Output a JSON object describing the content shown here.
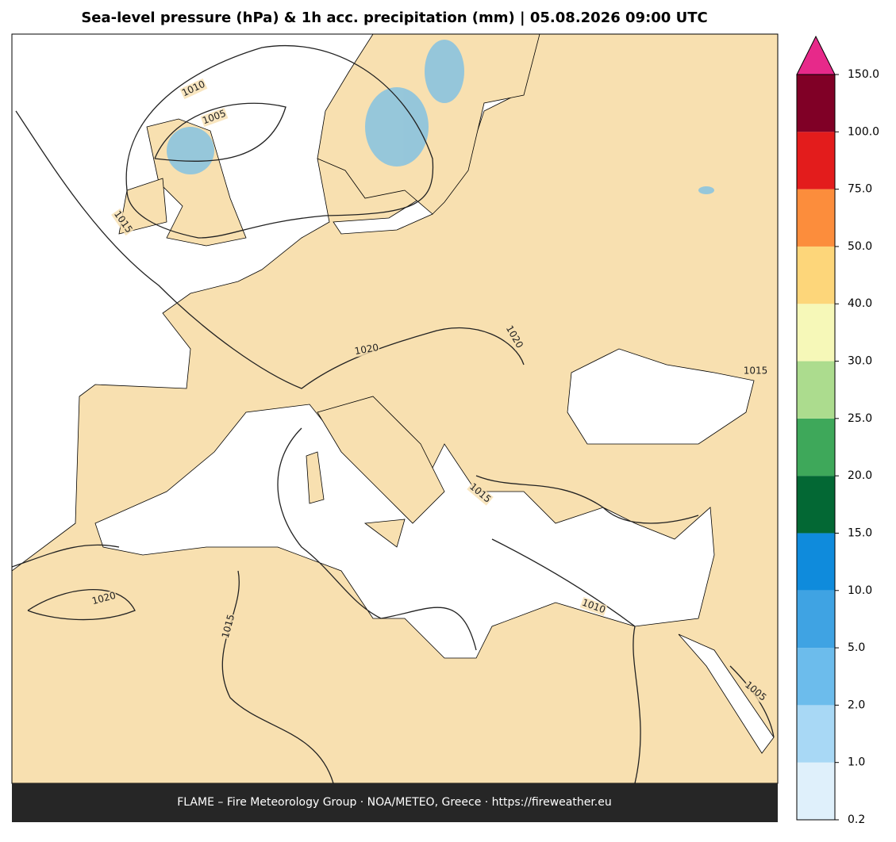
{
  "title": "Sea-level pressure (hPa) & 1h acc. precipitation (mm)  |  05.08.2026 09:00 UTC",
  "footer": "FLAME – Fire Meteorology Group · NOA/METEO, Greece · https://fireweather.eu",
  "colorbar": {
    "ticks": [
      0.2,
      {
        "value": 1,
        "label": "1.0"
      },
      {
        "value": 2,
        "label": "2.0"
      },
      {
        "value": 5,
        "label": "5.0"
      },
      {
        "value": 10,
        "label": "10.0"
      },
      {
        "value": 15,
        "label": "15.0"
      },
      {
        "value": 20,
        "label": "20.0"
      },
      {
        "value": 25,
        "label": "25.0"
      },
      {
        "value": 30,
        "label": "30.0"
      },
      {
        "value": 40,
        "label": "40.0"
      },
      {
        "value": 50,
        "label": "50.0"
      },
      {
        "value": 75,
        "label": "75.0"
      },
      {
        "value": 100,
        "label": "100.0"
      },
      {
        "value": 150,
        "label": "150.0"
      }
    ],
    "colors": [
      "#dff0fb",
      "#a8d8f5",
      "#6cbcec",
      "#3fa3e3",
      "#0f8bdc",
      "#036834",
      "#3ea85a",
      "#acdc8e",
      "#f6f8b8",
      "#fdd67a",
      "#fc8d3c",
      "#e31c1c",
      "#800026"
    ],
    "extend_color": "#e7298a"
  },
  "contour_labels": [
    "1010",
    "1005",
    "1015",
    "1020",
    "1020",
    "1015",
    "1015",
    "1020",
    "1015",
    "1010",
    "1005"
  ]
}
